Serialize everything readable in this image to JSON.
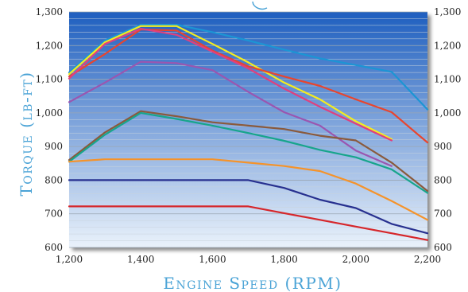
{
  "chart_data": {
    "type": "line",
    "title": "",
    "xlabel": "Engine Speed (RPM)",
    "ylabel": "Torque (lb-ft)",
    "xlim": [
      1200,
      2200
    ],
    "ylim": [
      600,
      1300
    ],
    "x_ticks": [
      1200,
      1400,
      1600,
      1800,
      2000,
      2200
    ],
    "x_tick_labels": [
      "1,200",
      "1,400",
      "1,600",
      "1,800",
      "2,000",
      "2,200"
    ],
    "y_ticks": [
      600,
      700,
      800,
      900,
      1000,
      1100,
      1200,
      1300
    ],
    "y_tick_labels": [
      "600",
      "700",
      "800",
      "900",
      "1,000",
      "1,100",
      "1,200",
      "1,300"
    ],
    "right_axis": true,
    "grid": "horizontal",
    "legend": "none",
    "background": {
      "top": "#1f5fbf",
      "bottom": "#eaf2fb"
    },
    "series": [
      {
        "color": "#1c95d4",
        "points": [
          [
            1200,
            1120
          ],
          [
            1300,
            1215
          ],
          [
            1400,
            1262
          ],
          [
            1500,
            1262
          ],
          [
            1600,
            1240
          ],
          [
            1700,
            1215
          ],
          [
            1800,
            1188
          ],
          [
            1900,
            1162
          ],
          [
            2000,
            1142
          ],
          [
            2100,
            1122
          ],
          [
            2200,
            1010
          ]
        ]
      },
      {
        "color": "#f5ec1e",
        "points": [
          [
            1200,
            1115
          ],
          [
            1300,
            1210
          ],
          [
            1400,
            1258
          ],
          [
            1500,
            1258
          ],
          [
            1600,
            1205
          ],
          [
            1700,
            1150
          ],
          [
            1800,
            1090
          ],
          [
            1900,
            1040
          ],
          [
            2000,
            975
          ],
          [
            2100,
            922
          ]
        ]
      },
      {
        "color": "#e8452e",
        "points": [
          [
            1200,
            1108
          ],
          [
            1300,
            1175
          ],
          [
            1400,
            1248
          ],
          [
            1500,
            1245
          ],
          [
            1600,
            1185
          ],
          [
            1700,
            1138
          ],
          [
            1800,
            1108
          ],
          [
            1900,
            1080
          ],
          [
            2000,
            1040
          ],
          [
            2100,
            1002
          ],
          [
            2200,
            912
          ]
        ]
      },
      {
        "color": "#e0407e",
        "points": [
          [
            1200,
            1102
          ],
          [
            1300,
            1205
          ],
          [
            1400,
            1250
          ],
          [
            1500,
            1232
          ],
          [
            1600,
            1182
          ],
          [
            1700,
            1132
          ],
          [
            1800,
            1072
          ],
          [
            1900,
            1018
          ],
          [
            2000,
            968
          ],
          [
            2100,
            918
          ]
        ]
      },
      {
        "color": "#9a56b0",
        "points": [
          [
            1200,
            1032
          ],
          [
            1300,
            1090
          ],
          [
            1400,
            1152
          ],
          [
            1500,
            1148
          ],
          [
            1600,
            1127
          ],
          [
            1700,
            1062
          ],
          [
            1800,
            1002
          ],
          [
            1900,
            962
          ],
          [
            2000,
            888
          ],
          [
            2100,
            842
          ]
        ]
      },
      {
        "color": "#8a5a3c",
        "points": [
          [
            1200,
            860
          ],
          [
            1300,
            942
          ],
          [
            1400,
            1005
          ],
          [
            1500,
            990
          ],
          [
            1600,
            972
          ],
          [
            1700,
            962
          ],
          [
            1800,
            952
          ],
          [
            1900,
            932
          ],
          [
            2000,
            918
          ],
          [
            2100,
            852
          ],
          [
            2200,
            768
          ]
        ]
      },
      {
        "color": "#17a58c",
        "points": [
          [
            1200,
            855
          ],
          [
            1300,
            935
          ],
          [
            1400,
            1000
          ],
          [
            1500,
            982
          ],
          [
            1600,
            962
          ],
          [
            1700,
            940
          ],
          [
            1800,
            917
          ],
          [
            1900,
            890
          ],
          [
            2000,
            868
          ],
          [
            2100,
            832
          ],
          [
            2200,
            762
          ]
        ]
      },
      {
        "color": "#f5932a",
        "points": [
          [
            1200,
            855
          ],
          [
            1300,
            862
          ],
          [
            1400,
            862
          ],
          [
            1500,
            862
          ],
          [
            1600,
            862
          ],
          [
            1700,
            852
          ],
          [
            1800,
            842
          ],
          [
            1900,
            827
          ],
          [
            2000,
            790
          ],
          [
            2100,
            738
          ],
          [
            2200,
            682
          ]
        ]
      },
      {
        "color": "#27308f",
        "points": [
          [
            1200,
            800
          ],
          [
            1300,
            800
          ],
          [
            1400,
            800
          ],
          [
            1500,
            800
          ],
          [
            1600,
            800
          ],
          [
            1700,
            800
          ],
          [
            1800,
            777
          ],
          [
            1900,
            742
          ],
          [
            2000,
            717
          ],
          [
            2100,
            670
          ],
          [
            2200,
            642
          ]
        ]
      },
      {
        "color": "#d6262a",
        "points": [
          [
            1200,
            722
          ],
          [
            1300,
            722
          ],
          [
            1400,
            722
          ],
          [
            1500,
            722
          ],
          [
            1600,
            722
          ],
          [
            1700,
            722
          ],
          [
            1800,
            702
          ],
          [
            1900,
            682
          ],
          [
            2000,
            662
          ],
          [
            2100,
            642
          ],
          [
            2200,
            622
          ]
        ]
      }
    ]
  }
}
